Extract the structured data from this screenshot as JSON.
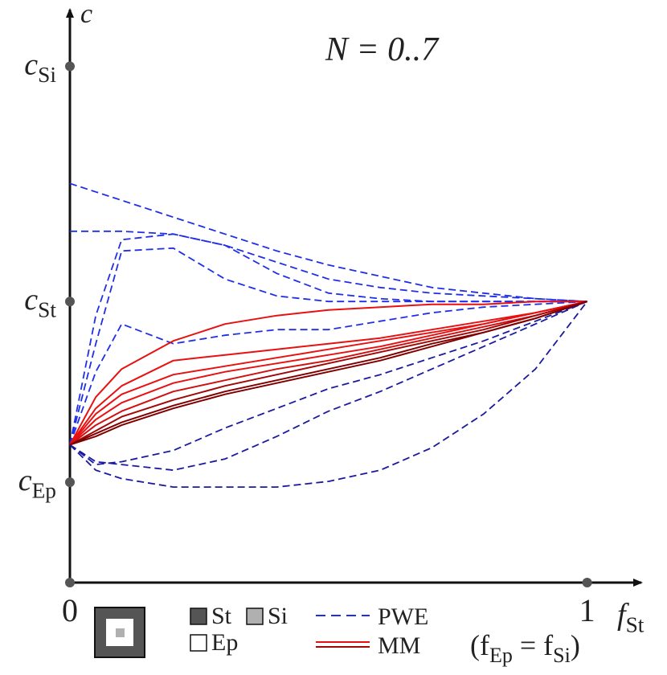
{
  "chart_data": {
    "type": "line",
    "title": {
      "text": "N = 0..7"
    },
    "y_label": "c",
    "x_label": {
      "text": "f",
      "subscript": "St"
    },
    "x_note": [
      {
        "text": "(f",
        "subscript": "Ep"
      },
      {
        "text": " = f",
        "subscript": "Si"
      },
      {
        "text": ")"
      }
    ],
    "x": [
      0,
      0.05,
      0.1,
      0.2,
      0.3,
      0.4,
      0.5,
      0.6,
      0.7,
      0.8,
      0.9,
      1
    ],
    "xlim": [
      0,
      1.1
    ],
    "xticks": [
      0,
      1
    ],
    "ylim": [
      0,
      2.03
    ],
    "yticks": [
      {
        "value": 0.357,
        "label": "c",
        "subscript": "Ep"
      },
      {
        "value": 1,
        "label": "c",
        "subscript": "St"
      },
      {
        "value": 1.837,
        "label": "c",
        "subscript": "Si"
      }
    ],
    "materials": [
      {
        "name": "St",
        "color": "#555555"
      },
      {
        "name": "Si",
        "color": "#b0b0b0"
      },
      {
        "name": "Ep",
        "color": "#ffffff"
      }
    ],
    "series": [
      {
        "name": "PWE",
        "color": "#1f2fe8",
        "dashed": true,
        "values": [
          1.42,
          1.39,
          1.36,
          1.3,
          1.24,
          1.18,
          1.13,
          1.09,
          1.05,
          1.03,
          1.01,
          1.0
        ]
      },
      {
        "name": "PWE",
        "color": "#1f2fe8",
        "dashed": true,
        "values": [
          1.25,
          1.25,
          1.25,
          1.24,
          1.2,
          1.14,
          1.08,
          1.05,
          1.03,
          1.02,
          1.01,
          1.0
        ]
      },
      {
        "name": "PWE",
        "color": "#1f2fe8",
        "dashed": true,
        "values": [
          0.49,
          0.95,
          1.22,
          1.24,
          1.2,
          1.1,
          1.03,
          1.01,
          1.0,
          1.0,
          1.0,
          1.0
        ]
      },
      {
        "name": "PWE",
        "color": "#1f2fe8",
        "dashed": true,
        "values": [
          0.49,
          0.85,
          1.18,
          1.19,
          1.08,
          1.02,
          1.0,
          1.0,
          1.0,
          1.0,
          1.0,
          1.0
        ]
      },
      {
        "name": "PWE",
        "color": "#1f2fe8",
        "dashed": true,
        "values": [
          0.49,
          0.75,
          0.92,
          0.85,
          0.88,
          0.9,
          0.9,
          0.93,
          0.96,
          0.98,
          0.99,
          1.0
        ]
      },
      {
        "name": "PWE",
        "color": "#1a1aa0",
        "dashed": true,
        "values": [
          0.49,
          0.42,
          0.43,
          0.47,
          0.55,
          0.62,
          0.69,
          0.74,
          0.8,
          0.86,
          0.93,
          1.0
        ]
      },
      {
        "name": "PWE",
        "color": "#1a1aa0",
        "dashed": true,
        "values": [
          0.49,
          0.43,
          0.42,
          0.4,
          0.44,
          0.52,
          0.61,
          0.68,
          0.76,
          0.84,
          0.92,
          1.0
        ]
      },
      {
        "name": "PWE",
        "color": "#1a1aa0",
        "dashed": true,
        "values": [
          0.49,
          0.4,
          0.37,
          0.34,
          0.34,
          0.34,
          0.36,
          0.4,
          0.48,
          0.6,
          0.76,
          1.0
        ]
      },
      {
        "name": "MM",
        "color": "#e81010",
        "values": [
          0.49,
          0.66,
          0.76,
          0.86,
          0.92,
          0.95,
          0.97,
          0.98,
          0.99,
          0.99,
          1.0,
          1.0
        ]
      },
      {
        "name": "MM",
        "color": "#e81010",
        "values": [
          0.49,
          0.62,
          0.7,
          0.79,
          0.81,
          0.83,
          0.85,
          0.87,
          0.9,
          0.93,
          0.96,
          1.0
        ]
      },
      {
        "name": "MM",
        "color": "#e81010",
        "values": [
          0.49,
          0.6,
          0.67,
          0.74,
          0.77,
          0.8,
          0.83,
          0.86,
          0.89,
          0.92,
          0.96,
          1.0
        ]
      },
      {
        "name": "MM",
        "color": "#e81010",
        "values": [
          0.49,
          0.58,
          0.64,
          0.71,
          0.75,
          0.78,
          0.81,
          0.84,
          0.88,
          0.92,
          0.96,
          1.0
        ]
      },
      {
        "name": "MM",
        "color": "#d01010",
        "values": [
          0.49,
          0.56,
          0.61,
          0.68,
          0.72,
          0.76,
          0.79,
          0.83,
          0.87,
          0.91,
          0.95,
          1.0
        ]
      },
      {
        "name": "MM",
        "color": "#a00808",
        "values": [
          0.49,
          0.54,
          0.59,
          0.65,
          0.7,
          0.74,
          0.78,
          0.82,
          0.86,
          0.9,
          0.95,
          1.0
        ]
      },
      {
        "name": "MM",
        "color": "#800000",
        "values": [
          0.49,
          0.53,
          0.57,
          0.63,
          0.68,
          0.72,
          0.76,
          0.8,
          0.85,
          0.89,
          0.94,
          1.0
        ]
      },
      {
        "name": "MM",
        "color": "#800000",
        "values": [
          0.49,
          0.52,
          0.56,
          0.62,
          0.67,
          0.71,
          0.75,
          0.79,
          0.84,
          0.89,
          0.94,
          1.0
        ]
      }
    ]
  }
}
